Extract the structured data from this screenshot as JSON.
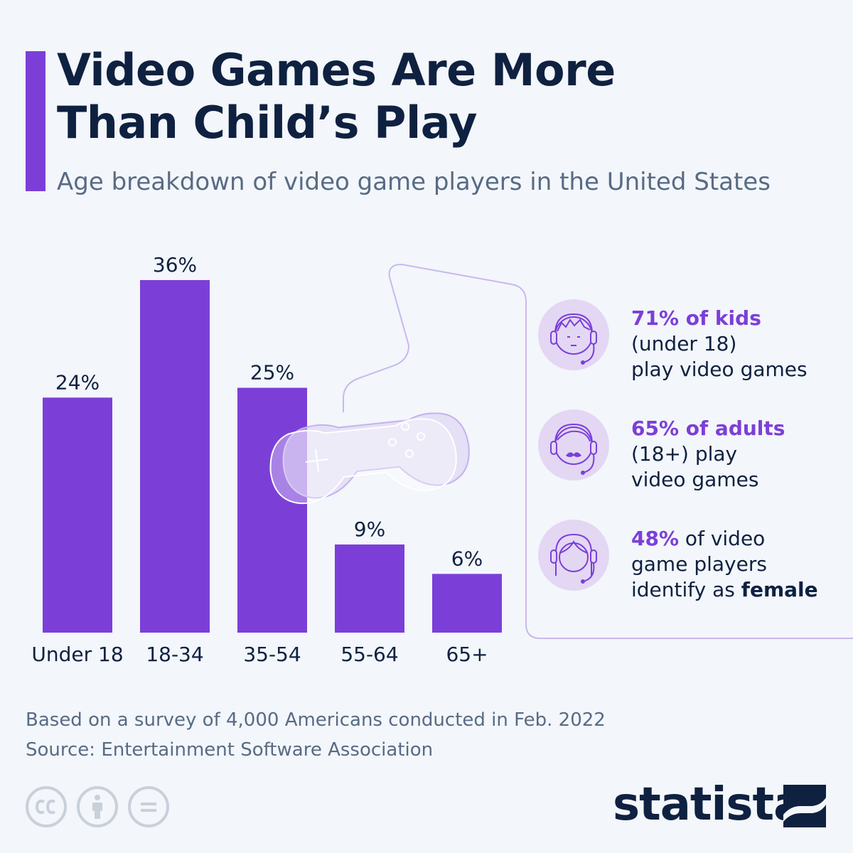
{
  "header": {
    "title_line1": "Video Games Are More",
    "title_line2": "Than Child’s Play",
    "subtitle": "Age breakdown of video game players in the United States"
  },
  "chart_data": {
    "type": "bar",
    "title": "Video Games Are More Than Child’s Play",
    "subtitle": "Age breakdown of video game players in the United States",
    "categories": [
      "Under 18",
      "18-34",
      "35-54",
      "55-64",
      "65+"
    ],
    "values": [
      24,
      36,
      25,
      9,
      6
    ],
    "value_labels": [
      "24%",
      "36%",
      "25%",
      "9%",
      "6%"
    ],
    "unit": "%",
    "ylim": [
      0,
      36
    ],
    "xlabel": "",
    "ylabel": "",
    "grid": false,
    "bar_color": "#7b3fd8"
  },
  "facts": [
    {
      "icon": "kid-gamer-icon",
      "highlight": "71% of kids",
      "line2": "(under 18)",
      "line3": "play video games"
    },
    {
      "icon": "adult-gamer-icon",
      "highlight": "65% of adults",
      "line2": "(18+) play",
      "line3": "video games"
    },
    {
      "icon": "female-gamer-icon",
      "highlight": "48%",
      "rest1": " of video",
      "line2": "game players",
      "line3_prefix": "identify as ",
      "line3_bold": "female"
    }
  ],
  "footer": {
    "note": "Based on a survey of 4,000 Americans conducted in Feb. 2022",
    "source": "Source: Entertainment Software Association",
    "license_icons": [
      "cc-icon",
      "attribution-icon",
      "no-derivatives-icon"
    ],
    "brand": "statista"
  },
  "colors": {
    "accent": "#7b3fd8",
    "title": "#0f2140",
    "subtitle": "#586b84",
    "background": "#f3f6fa",
    "icon_circle": "#e3d7f4"
  }
}
